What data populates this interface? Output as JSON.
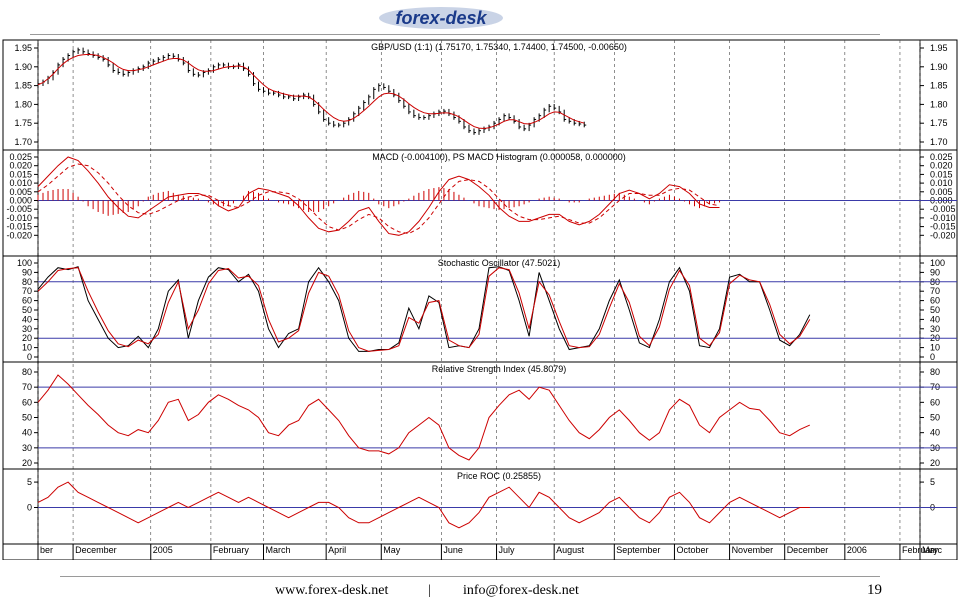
{
  "brand": {
    "logo_text": "forex-desk",
    "logo_color": "#1a3a8a",
    "logo_bg": "#c9d3e6"
  },
  "footer": {
    "website": "www.forex-desk.net",
    "separator": "|",
    "email": "info@forex-desk.net",
    "page_number": "19"
  },
  "chart_data": {
    "type": "line",
    "x_axis": {
      "labels": [
        "ber",
        "December",
        "2005",
        "February",
        "March",
        "April",
        "May",
        "June",
        "July",
        "August",
        "September",
        "October",
        "November",
        "December",
        "2006",
        "February",
        "Marc"
      ],
      "x_range": [
        0,
        352
      ],
      "label_positions": [
        0,
        14,
        45,
        69,
        90,
        115,
        137,
        161,
        183,
        206,
        230,
        254,
        276,
        298,
        322,
        344,
        352
      ]
    },
    "panels": [
      {
        "id": "price",
        "title": "GBP/USD (1:1) (1.75170, 1.75340, 1.74400, 1.74500, -0.00650)",
        "ylim": [
          1.7,
          1.95
        ],
        "ticks": [
          "1.95",
          "1.90",
          "1.85",
          "1.80",
          "1.75",
          "1.70"
        ],
        "tick_values": [
          1.95,
          1.9,
          1.85,
          1.8,
          1.75,
          1.7
        ],
        "series": [
          {
            "style": "bar",
            "color": "#000000",
            "x_step": 2,
            "values": [
              1.855,
              1.86,
              1.87,
              1.885,
              1.905,
              1.92,
              1.93,
              1.94,
              1.945,
              1.94,
              1.935,
              1.93,
              1.925,
              1.92,
              1.905,
              1.89,
              1.885,
              1.88,
              1.885,
              1.89,
              1.895,
              1.9,
              1.91,
              1.915,
              1.92,
              1.925,
              1.93,
              1.928,
              1.92,
              1.91,
              1.89,
              1.88,
              1.878,
              1.885,
              1.89,
              1.9,
              1.905,
              1.905,
              1.9,
              1.9,
              1.905,
              1.895,
              1.88,
              1.855,
              1.84,
              1.835,
              1.83,
              1.83,
              1.825,
              1.82,
              1.82,
              1.815,
              1.82,
              1.825,
              1.82,
              1.8,
              1.78,
              1.76,
              1.75,
              1.745,
              1.745,
              1.75,
              1.76,
              1.775,
              1.79,
              1.805,
              1.82,
              1.84,
              1.85,
              1.845,
              1.835,
              1.825,
              1.81,
              1.795,
              1.78,
              1.77,
              1.765,
              1.765,
              1.77,
              1.775,
              1.78,
              1.782,
              1.775,
              1.765,
              1.755,
              1.74,
              1.73,
              1.725,
              1.73,
              1.735,
              1.74,
              1.75,
              1.76,
              1.77,
              1.765,
              1.755,
              1.74,
              1.735,
              1.745,
              1.76,
              1.77,
              1.785,
              1.795,
              1.79,
              1.78,
              1.76,
              1.755,
              1.75,
              1.748,
              1.745
            ]
          },
          {
            "style": "line",
            "color": "#cc0000",
            "x_step": 2,
            "values": [
              1.852,
              1.858,
              1.868,
              1.88,
              1.895,
              1.908,
              1.918,
              1.925,
              1.93,
              1.932,
              1.933,
              1.932,
              1.93,
              1.925,
              1.918,
              1.91,
              1.9,
              1.893,
              1.89,
              1.89,
              1.892,
              1.895,
              1.9,
              1.905,
              1.91,
              1.915,
              1.92,
              1.922,
              1.922,
              1.918,
              1.91,
              1.9,
              1.892,
              1.888,
              1.888,
              1.89,
              1.894,
              1.898,
              1.9,
              1.901,
              1.902,
              1.9,
              1.892,
              1.878,
              1.865,
              1.852,
              1.842,
              1.836,
              1.832,
              1.828,
              1.825,
              1.822,
              1.822,
              1.822,
              1.82,
              1.812,
              1.8,
              1.787,
              1.775,
              1.765,
              1.758,
              1.755,
              1.757,
              1.763,
              1.772,
              1.783,
              1.795,
              1.808,
              1.82,
              1.828,
              1.83,
              1.828,
              1.822,
              1.813,
              1.802,
              1.792,
              1.784,
              1.778,
              1.775,
              1.775,
              1.776,
              1.778,
              1.777,
              1.773,
              1.767,
              1.758,
              1.749,
              1.741,
              1.737,
              1.736,
              1.738,
              1.742,
              1.748,
              1.755,
              1.759,
              1.759,
              1.754,
              1.749,
              1.748,
              1.752,
              1.758,
              1.766,
              1.775,
              1.78,
              1.779,
              1.772,
              1.765,
              1.758,
              1.754,
              1.75
            ]
          }
        ]
      },
      {
        "id": "macd",
        "title": "MACD (-0.004100), PS MACD Histogram (0.000058, 0.000000)",
        "ylim": [
          -0.025,
          0.025
        ],
        "ticks": [
          "0.025",
          "0.020",
          "0.015",
          "0.010",
          "0.005",
          "0.000",
          "-0.005",
          "-0.010",
          "-0.015",
          "-0.020"
        ],
        "tick_values": [
          0.025,
          0.02,
          0.015,
          0.01,
          0.005,
          0.0,
          -0.005,
          -0.01,
          -0.015,
          -0.02
        ],
        "zero_line": 0.0,
        "series": [
          {
            "style": "line",
            "color": "#cc0000",
            "x_step": 4,
            "values": [
              0.008,
              0.014,
              0.02,
              0.025,
              0.023,
              0.017,
              0.01,
              0.002,
              -0.004,
              -0.009,
              -0.01,
              -0.006,
              -0.002,
              0.002,
              0.003,
              0.004,
              0.004,
              0.002,
              -0.003,
              -0.006,
              -0.004,
              0.004,
              0.007,
              0.006,
              0.004,
              0.002,
              -0.003,
              -0.01,
              -0.016,
              -0.018,
              -0.017,
              -0.012,
              -0.006,
              -0.004,
              -0.012,
              -0.019,
              -0.02,
              -0.018,
              -0.012,
              -0.004,
              0.005,
              0.012,
              0.014,
              0.012,
              0.008,
              0.003,
              -0.004,
              -0.009,
              -0.012,
              -0.012,
              -0.01,
              -0.008,
              -0.008,
              -0.012,
              -0.014,
              -0.012,
              -0.008,
              -0.002,
              0.004,
              0.006,
              0.004,
              0.001,
              0.004,
              0.009,
              0.008,
              0.004,
              -0.002,
              -0.004,
              -0.004
            ]
          },
          {
            "style": "dashed",
            "color": "#cc0000",
            "x_step": 4,
            "values": [
              0.005,
              0.009,
              0.014,
              0.019,
              0.021,
              0.02,
              0.016,
              0.01,
              0.003,
              -0.003,
              -0.007,
              -0.008,
              -0.006,
              -0.003,
              0.0,
              0.002,
              0.003,
              0.003,
              0.0,
              -0.003,
              -0.004,
              -0.001,
              0.003,
              0.005,
              0.005,
              0.004,
              0.001,
              -0.004,
              -0.01,
              -0.015,
              -0.017,
              -0.015,
              -0.011,
              -0.008,
              -0.01,
              -0.015,
              -0.018,
              -0.019,
              -0.016,
              -0.01,
              -0.002,
              0.006,
              0.011,
              0.012,
              0.011,
              0.007,
              0.001,
              -0.005,
              -0.009,
              -0.011,
              -0.011,
              -0.01,
              -0.009,
              -0.011,
              -0.013,
              -0.013,
              -0.01,
              -0.005,
              0.0,
              0.004,
              0.004,
              0.003,
              0.003,
              0.006,
              0.007,
              0.006,
              0.002,
              -0.002,
              -0.003
            ]
          },
          {
            "style": "histogram",
            "color": "#cc0000",
            "x_step": 1,
            "values_from": "macd_minus_signal"
          }
        ]
      },
      {
        "id": "stochastic",
        "title": "Stochastic Oscillator (47.5021)",
        "ylim": [
          0,
          100
        ],
        "ticks": [
          "100",
          "90",
          "80",
          "70",
          "60",
          "50",
          "40",
          "30",
          "20",
          "10",
          "0"
        ],
        "tick_values": [
          100,
          90,
          80,
          70,
          60,
          50,
          40,
          30,
          20,
          10,
          0
        ],
        "reference_lines": [
          80,
          20
        ],
        "reference_color": "#3a3aa8",
        "series": [
          {
            "style": "line",
            "color": "#000000",
            "x_step": 4,
            "values": [
              72,
              85,
              95,
              93,
              96,
              60,
              40,
              20,
              10,
              12,
              22,
              10,
              30,
              70,
              82,
              20,
              60,
              85,
              95,
              93,
              80,
              88,
              70,
              30,
              10,
              25,
              30,
              80,
              95,
              80,
              60,
              20,
              6,
              6,
              8,
              8,
              15,
              52,
              30,
              65,
              58,
              10,
              12,
              10,
              30,
              95,
              96,
              92,
              60,
              22,
              90,
              60,
              30,
              8,
              10,
              12,
              30,
              60,
              82,
              50,
              15,
              10,
              40,
              80,
              95,
              70,
              12,
              10,
              30,
              85,
              88,
              80,
              80,
              50,
              18,
              12,
              24,
              45
            ]
          },
          {
            "style": "line",
            "color": "#cc0000",
            "x_step": 4,
            "values": [
              70,
              80,
              92,
              94,
              95,
              70,
              48,
              28,
              14,
              11,
              18,
              14,
              24,
              58,
              80,
              30,
              50,
              78,
              92,
              94,
              84,
              86,
              76,
              40,
              16,
              20,
              28,
              68,
              90,
              86,
              66,
              28,
              10,
              6,
              7,
              8,
              12,
              42,
              36,
              58,
              60,
              18,
              12,
              10,
              24,
              86,
              95,
              93,
              68,
              30,
              80,
              66,
              38,
              12,
              10,
              11,
              24,
              52,
              78,
              58,
              22,
              12,
              32,
              72,
              92,
              76,
              20,
              12,
              26,
              78,
              87,
              82,
              80,
              56,
              24,
              14,
              22,
              40
            ]
          }
        ]
      },
      {
        "id": "rsi",
        "title": "Relative Strength Index (45.8079)",
        "ylim": [
          20,
          80
        ],
        "ticks": [
          "80",
          "70",
          "60",
          "50",
          "40",
          "30",
          "20"
        ],
        "tick_values": [
          80,
          70,
          60,
          50,
          40,
          30,
          20
        ],
        "reference_lines": [
          70,
          30
        ],
        "reference_color": "#3a3aa8",
        "series": [
          {
            "style": "line",
            "color": "#cc0000",
            "x_step": 4,
            "values": [
              60,
              68,
              78,
              72,
              65,
              58,
              52,
              45,
              40,
              38,
              42,
              40,
              48,
              60,
              62,
              48,
              52,
              60,
              65,
              62,
              58,
              55,
              50,
              40,
              38,
              45,
              48,
              58,
              62,
              55,
              48,
              38,
              30,
              28,
              28,
              26,
              30,
              40,
              45,
              50,
              45,
              30,
              25,
              22,
              30,
              50,
              58,
              65,
              68,
              62,
              70,
              68,
              58,
              48,
              40,
              36,
              42,
              50,
              55,
              48,
              40,
              35,
              40,
              55,
              62,
              58,
              45,
              40,
              50,
              55,
              60,
              56,
              55,
              48,
              40,
              38,
              42,
              45
            ]
          }
        ]
      },
      {
        "id": "roc",
        "title": "Price ROC (0.25855)",
        "ylim": [
          -6,
          6
        ],
        "ticks": [
          "5",
          "0"
        ],
        "tick_values": [
          5,
          0
        ],
        "reference_lines": [
          0
        ],
        "reference_color": "#3a3aa8",
        "series": [
          {
            "style": "line",
            "color": "#cc0000",
            "x_step": 4,
            "values": [
              1,
              2,
              4,
              5,
              3,
              2,
              1,
              0,
              -1,
              -2,
              -3,
              -2,
              -1,
              0,
              1,
              0,
              1,
              2,
              3,
              2,
              1,
              2,
              1,
              0,
              -1,
              -2,
              -1,
              0,
              1,
              1,
              0,
              -2,
              -3,
              -3,
              -2,
              -1,
              0,
              1,
              2,
              1,
              0,
              -3,
              -4,
              -3,
              -1,
              2,
              3,
              4,
              2,
              0,
              3,
              2,
              0,
              -2,
              -3,
              -2,
              -1,
              1,
              2,
              0,
              -2,
              -3,
              -1,
              2,
              3,
              1,
              -2,
              -3,
              -1,
              1,
              2,
              1,
              0,
              -1,
              -2,
              -1,
              0,
              0
            ]
          }
        ]
      }
    ],
    "grid": {
      "vertical": "dashed",
      "horizontal": "none"
    }
  }
}
